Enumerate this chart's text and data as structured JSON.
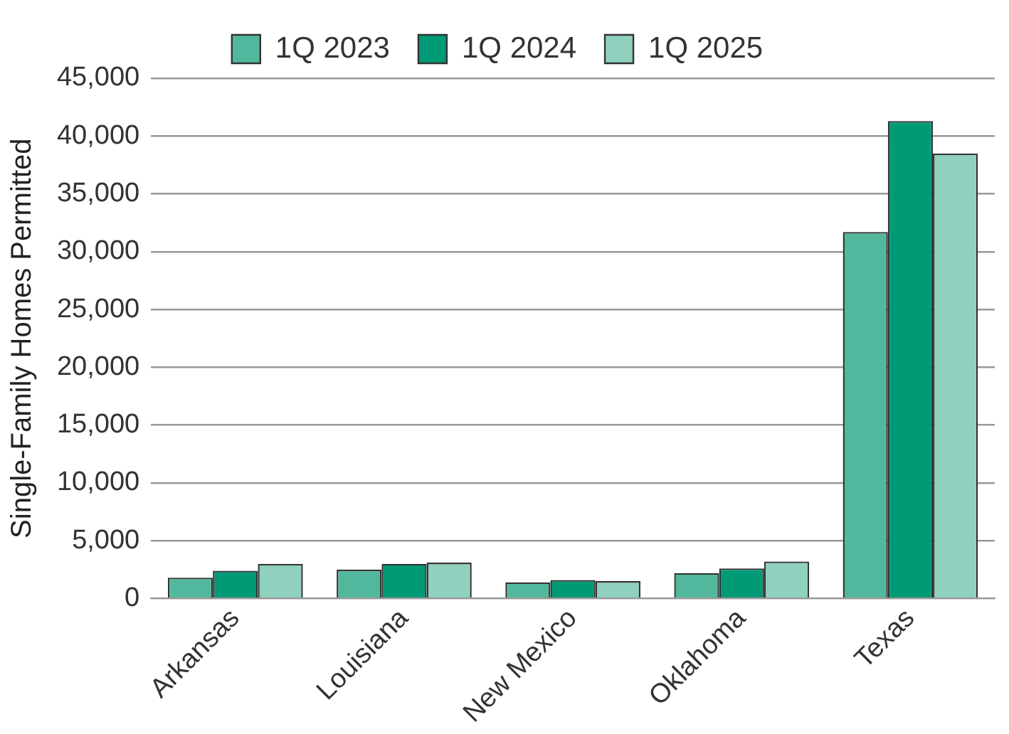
{
  "chart_data": {
    "type": "bar",
    "categories": [
      "Arkansas",
      "Louisiana",
      "New Mexico",
      "Oklahoma",
      "Texas"
    ],
    "ylabel": "Single-Family Homes Permitted",
    "series": [
      {
        "name": "1Q 2023",
        "color": "#52b89d",
        "values": [
          1800,
          2500,
          1400,
          2200,
          31700
        ]
      },
      {
        "name": "1Q 2024",
        "color": "#009a77",
        "values": [
          2400,
          3000,
          1600,
          2600,
          41300
        ]
      },
      {
        "name": "1Q 2025",
        "color": "#8fd0bf",
        "values": [
          3000,
          3100,
          1500,
          3200,
          38500
        ]
      }
    ],
    "ylim": [
      0,
      45000
    ],
    "yticks": [
      0,
      {
        "value": 5000,
        "label": "5,000"
      },
      {
        "value": 10000,
        "label": "10,000"
      },
      {
        "value": 15000,
        "label": "15,000"
      },
      {
        "value": 20000,
        "label": "20,000"
      },
      {
        "value": 25000,
        "label": "25,000"
      },
      {
        "value": 30000,
        "label": "30,000"
      },
      {
        "value": 35000,
        "label": "35,000"
      },
      {
        "value": 40000,
        "label": "40,000"
      },
      {
        "value": 45000,
        "label": "45,000"
      }
    ],
    "grid": "y",
    "legend": "top"
  }
}
